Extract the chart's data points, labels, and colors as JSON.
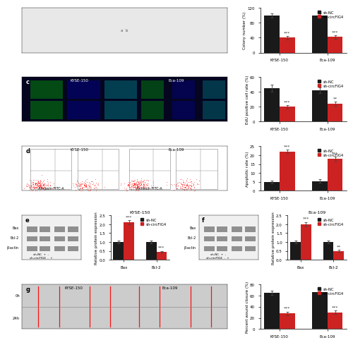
{
  "panel_c_bar": {
    "groups": [
      "KYSE-150",
      "Eca-109"
    ],
    "sh_nc": [
      45,
      42
    ],
    "sh_circFIG4": [
      20,
      24
    ],
    "sh_nc_err": [
      5,
      4
    ],
    "sh_circFIG4_err": [
      2,
      3
    ],
    "ylabel": "EdU positive cell rate (%)",
    "ylim": [
      0,
      60
    ],
    "yticks": [
      0,
      20,
      40,
      60
    ],
    "sig_labels_circ": [
      "***",
      "**"
    ]
  },
  "panel_d_bar": {
    "groups": [
      "KYSE-150",
      "Eca-109"
    ],
    "sh_nc": [
      5,
      5.5
    ],
    "sh_circFIG4": [
      22,
      18
    ],
    "sh_nc_err": [
      0.8,
      0.9
    ],
    "sh_circFIG4_err": [
      1.0,
      1.2
    ],
    "ylabel": "Apoptotic rate (%)",
    "ylim": [
      0,
      25
    ],
    "yticks": [
      0,
      5,
      10,
      15,
      20,
      25
    ],
    "sig_labels_circ": [
      "***",
      "***"
    ]
  },
  "panel_e_bar": {
    "title": "KYSE-150",
    "proteins": [
      "Bax",
      "Bcl-2"
    ],
    "sh_nc": [
      1.0,
      1.0
    ],
    "sh_circFIG4": [
      2.1,
      0.45
    ],
    "sh_nc_err": [
      0.08,
      0.07
    ],
    "sh_circFIG4_err": [
      0.12,
      0.05
    ],
    "ylabel": "Relative protein expression",
    "ylim": [
      0,
      2.5
    ],
    "yticks": [
      0.0,
      0.5,
      1.0,
      1.5,
      2.0,
      2.5
    ],
    "sig_labels_circ": [
      "***",
      "***"
    ]
  },
  "panel_f_bar": {
    "title": "Eca-109",
    "proteins": [
      "Bax",
      "Bcl-2"
    ],
    "sh_nc": [
      1.0,
      1.0
    ],
    "sh_circFIG4": [
      2.0,
      0.5
    ],
    "sh_nc_err": [
      0.08,
      0.07
    ],
    "sh_circFIG4_err": [
      0.12,
      0.05
    ],
    "ylabel": "Relative protein expression",
    "ylim": [
      0,
      2.5
    ],
    "yticks": [
      0.0,
      0.5,
      1.0,
      1.5,
      2.0,
      2.5
    ],
    "sig_labels_circ": [
      "***",
      "**"
    ]
  },
  "panel_g_bar": {
    "groups": [
      "KYSE-150",
      "Eca-109"
    ],
    "sh_nc": [
      65,
      66
    ],
    "sh_circFIG4": [
      28,
      30
    ],
    "sh_nc_err": [
      4,
      4
    ],
    "sh_circFIG4_err": [
      3,
      3
    ],
    "ylabel": "Percent wound closure (%)",
    "ylim": [
      0,
      80
    ],
    "yticks": [
      0,
      20,
      40,
      60,
      80
    ],
    "sig_labels_circ": [
      "***",
      "***"
    ]
  },
  "panel_b_bar": {
    "groups": [
      "KYSE-150",
      "Eca-109"
    ],
    "sh_nc": [
      100,
      100
    ],
    "sh_circFIG4": [
      40,
      42
    ],
    "sh_nc_err": [
      6,
      6
    ],
    "sh_circFIG4_err": [
      4,
      4
    ],
    "ylabel": "Colony number (%)",
    "ylim": [
      0,
      120
    ],
    "yticks": [
      0,
      40,
      80,
      120
    ],
    "sig_labels_circ": [
      "***",
      "***"
    ]
  },
  "colors": {
    "bar_black": "#1a1a1a",
    "bar_red": "#cc2222"
  },
  "legend": {
    "sh_nc": "sh-NC",
    "sh_circFIG4": "sh-circFIG4"
  }
}
